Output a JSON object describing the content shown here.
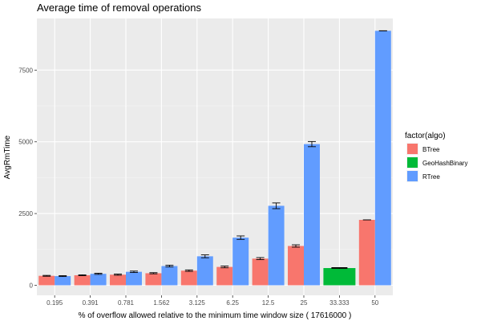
{
  "chart_data": {
    "type": "bar",
    "title": "Average time of removal operations",
    "xlabel": "% of overflow allowed relative to the minimum time window size ( 17616000 )",
    "ylabel": "AvgRmTime",
    "categories": [
      "0.195",
      "0.391",
      "0.781",
      "1.562",
      "3.125",
      "6.25",
      "12.5",
      "25",
      "33.333",
      "50"
    ],
    "yticks": [
      0,
      2500,
      5000,
      7500
    ],
    "ylim": [
      -350,
      9300
    ],
    "grid": true,
    "legend": {
      "title": "factor(algo)",
      "position": "right"
    },
    "series": [
      {
        "name": "BTree",
        "color": "#F8766D",
        "values": [
          330,
          350,
          370,
          420,
          510,
          640,
          930,
          1370,
          null,
          2280
        ],
        "errors": [
          15,
          15,
          20,
          20,
          25,
          30,
          35,
          40,
          null,
          0
        ]
      },
      {
        "name": "GeoHashBinary",
        "color": "#00BA38",
        "values": [
          null,
          null,
          null,
          null,
          null,
          null,
          null,
          null,
          600,
          null
        ],
        "errors": [
          null,
          null,
          null,
          null,
          null,
          null,
          null,
          null,
          15,
          null
        ]
      },
      {
        "name": "RTree",
        "color": "#619CFF",
        "values": [
          320,
          400,
          470,
          670,
          1010,
          1660,
          2770,
          4920,
          null,
          8870
        ],
        "errors": [
          15,
          20,
          25,
          30,
          50,
          60,
          100,
          90,
          null,
          0
        ]
      }
    ]
  }
}
